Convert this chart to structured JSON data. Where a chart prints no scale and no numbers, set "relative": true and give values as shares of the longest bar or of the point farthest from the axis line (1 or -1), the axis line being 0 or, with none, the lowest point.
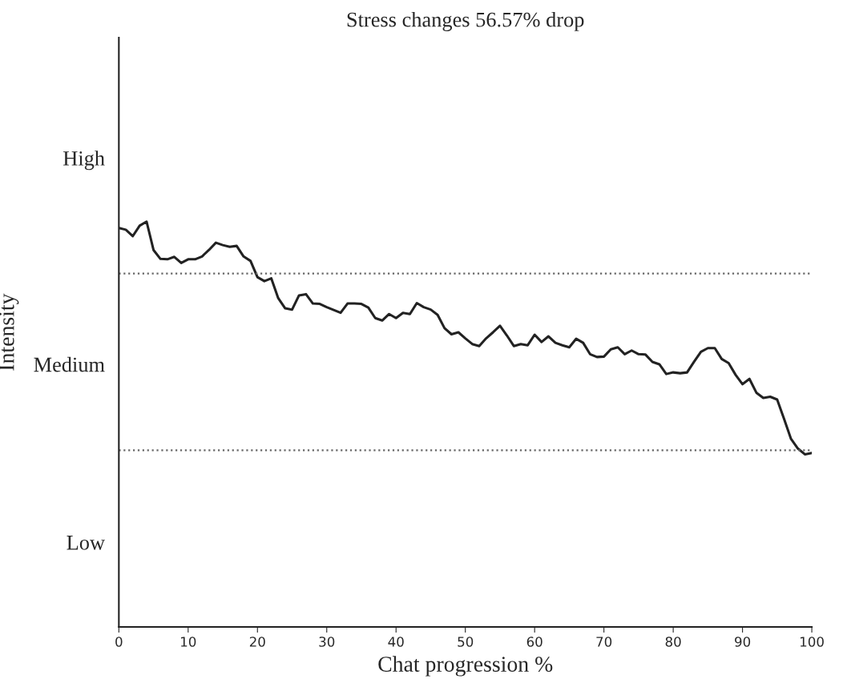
{
  "chart_data": {
    "type": "line",
    "title": "Stress changes 56.57% drop",
    "xlabel": "Chat progression %",
    "ylabel": "Intensity",
    "x": [
      0,
      1,
      2,
      3,
      4,
      5,
      6,
      7,
      8,
      9,
      10,
      11,
      12,
      13,
      14,
      15,
      16,
      17,
      18,
      19,
      20,
      21,
      22,
      23,
      24,
      25,
      26,
      27,
      28,
      29,
      30,
      31,
      32,
      33,
      34,
      35,
      36,
      37,
      38,
      39,
      40,
      41,
      42,
      43,
      44,
      45,
      46,
      47,
      48,
      49,
      50,
      51,
      52,
      53,
      54,
      55,
      56,
      57,
      58,
      59,
      60,
      61,
      62,
      63,
      64,
      65,
      66,
      67,
      68,
      69,
      70,
      71,
      72,
      73,
      74,
      75,
      76,
      77,
      78,
      79,
      80,
      81,
      82,
      83,
      84,
      85,
      86,
      87,
      88,
      89,
      90,
      91,
      92,
      93,
      94,
      95,
      96,
      97,
      98,
      99,
      100
    ],
    "series": [
      {
        "color": "#222222",
        "values": [
          0.984,
          0.98,
          0.964,
          0.99,
          1,
          0.93,
          0.908,
          0.907,
          0.913,
          0.898,
          0.907,
          0.907,
          0.914,
          0.93,
          0.948,
          0.942,
          0.938,
          0.94,
          0.914,
          0.903,
          0.863,
          0.853,
          0.86,
          0.811,
          0.786,
          0.783,
          0.818,
          0.821,
          0.798,
          0.797,
          0.789,
          0.782,
          0.775,
          0.798,
          0.798,
          0.797,
          0.788,
          0.762,
          0.756,
          0.772,
          0.762,
          0.775,
          0.772,
          0.799,
          0.789,
          0.783,
          0.77,
          0.737,
          0.722,
          0.727,
          0.712,
          0.698,
          0.693,
          0.712,
          0.727,
          0.743,
          0.719,
          0.693,
          0.698,
          0.695,
          0.721,
          0.703,
          0.717,
          0.701,
          0.695,
          0.69,
          0.711,
          0.701,
          0.673,
          0.666,
          0.667,
          0.685,
          0.69,
          0.673,
          0.682,
          0.673,
          0.672,
          0.654,
          0.648,
          0.624,
          0.628,
          0.626,
          0.628,
          0.654,
          0.679,
          0.688,
          0.688,
          0.661,
          0.651,
          0.622,
          0.599,
          0.612,
          0.578,
          0.565,
          0.568,
          0.561,
          0.513,
          0.464,
          0.44,
          0.426,
          0.429
        ]
      }
    ],
    "xlim": [
      0,
      100
    ],
    "xticks": [
      0,
      10,
      20,
      30,
      40,
      50,
      60,
      70,
      80,
      90,
      100
    ],
    "relative": true,
    "annotations": [
      "High",
      "Medium",
      "Low"
    ],
    "ref_lines": [
      {
        "axis": "y",
        "value": 0.872,
        "label": null,
        "color": "#666666",
        "line_style": "dotted"
      },
      {
        "axis": "y",
        "value": 0.436,
        "label": null,
        "color": "#666666",
        "line_style": "dotted"
      }
    ],
    "grid": false,
    "legend": false,
    "marker": "none",
    "line_style": "solid"
  }
}
